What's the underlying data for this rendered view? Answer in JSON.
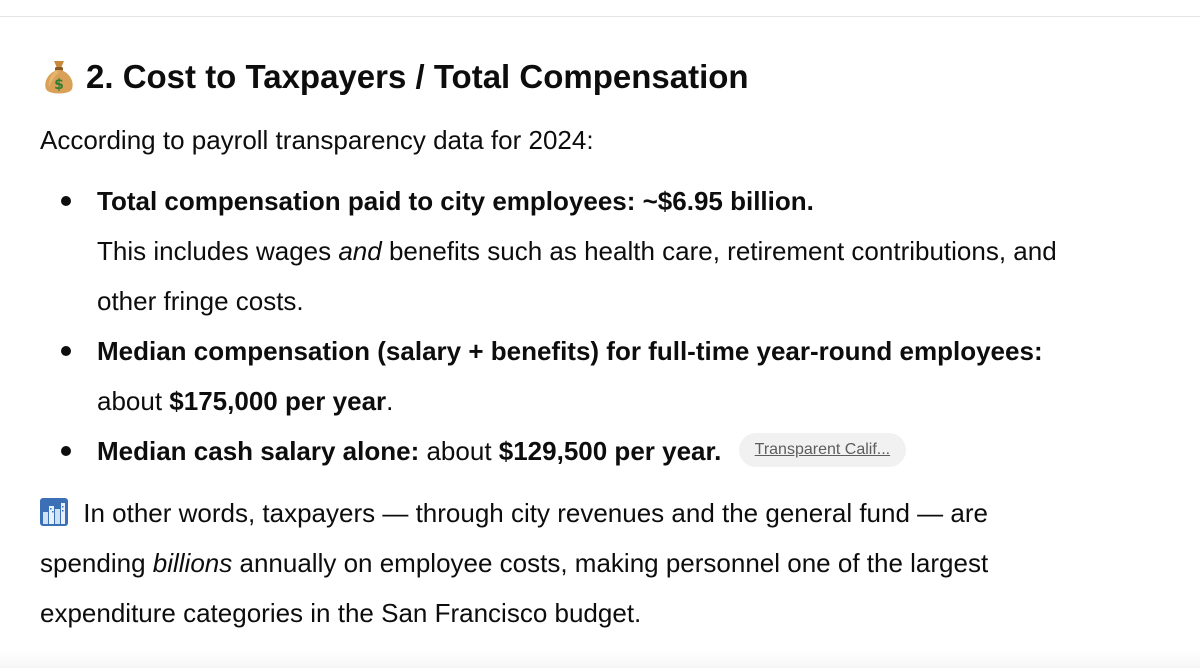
{
  "section": {
    "heading": "2. Cost to Taxpayers / Total Compensation",
    "heading_icon": "money-bag-icon",
    "intro": "According to payroll transparency data for 2024:"
  },
  "bullets": {
    "b1": {
      "bold": "Total compensation paid to city employees: ~$6.95 billion.",
      "line2_pre": "This includes wages ",
      "line2_italic": "and",
      "line2_post": " benefits such as health care, retirement contributions, and",
      "line3": "other fringe costs."
    },
    "b2": {
      "bold": "Median compensation (salary + benefits) for full-time year-round employees:",
      "line2_pre": "about ",
      "line2_bold": "$175,000 per year",
      "line2_post": "."
    },
    "b3": {
      "bold": "Median cash salary alone:",
      "mid": " about ",
      "bold2": "$129,500 per year.",
      "source": "Transparent Calif..."
    }
  },
  "summary": {
    "icon": "city-skyline-icon",
    "line1": " In other words, taxpayers — through city revenues and the general fund — are",
    "line2_pre": "spending ",
    "line2_italic": "billions",
    "line2_post": " annually on employee costs, making personnel one of the largest",
    "line3": "expenditure categories in the San Francisco budget."
  },
  "colors": {
    "text": "#0d0d0d",
    "pill_bg": "#f1f1f1",
    "pill_text": "#5d5d5d"
  }
}
